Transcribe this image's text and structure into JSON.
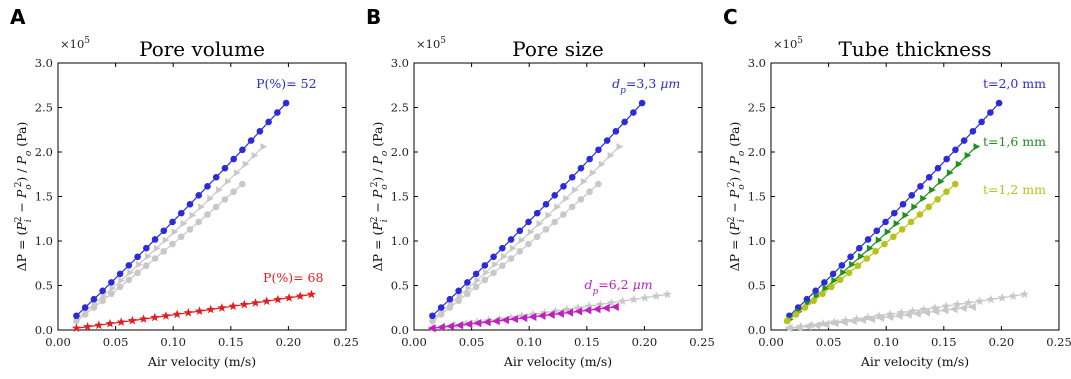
{
  "chart_data": [
    {
      "type": "line",
      "panel_label": "A",
      "title": "Pore volume",
      "xlabel": "Air velocity (m/s)",
      "ylabel": "ΔP = (Pi² − Po²) / Po (Pa)",
      "multiplier": "×10",
      "multiplier_exp": "5",
      "xlim": [
        0,
        0.25
      ],
      "ylim": [
        0,
        3.0
      ],
      "xticks": [
        "0.00",
        "0.05",
        "0.10",
        "0.15",
        "0.20",
        "0.25"
      ],
      "yticks": [
        "0.0",
        "0.5",
        "1.0",
        "1.5",
        "2.0",
        "2.5",
        "3.0"
      ],
      "series": [
        {
          "name": "P(%)= 52",
          "label_pos": [
            0.172,
            2.72
          ],
          "label_color": "#2b2bd9",
          "color": "#2b2bd9",
          "marker": "circle",
          "highlight": true,
          "x_start": 0.016,
          "x_end": 0.198,
          "y_start": 0.16,
          "y_end": 2.55,
          "n": 25
        },
        {
          "name": "P(%)= 68",
          "label_pos": [
            0.178,
            0.54
          ],
          "label_color": "#e02020",
          "color": "#e02020",
          "marker": "star",
          "highlight": true,
          "x_start": 0.016,
          "x_end": 0.22,
          "y_start": 0.02,
          "y_end": 0.4,
          "n": 22
        },
        {
          "name": "",
          "color": "#c8c8c8",
          "marker": "tri",
          "highlight": false,
          "x_start": 0.016,
          "x_end": 0.178,
          "y_start": 0.12,
          "y_end": 2.06,
          "n": 22
        },
        {
          "name": "",
          "color": "#c8c8c8",
          "marker": "circle",
          "highlight": false,
          "x_start": 0.016,
          "x_end": 0.16,
          "y_start": 0.1,
          "y_end": 1.64,
          "n": 20
        }
      ]
    },
    {
      "type": "line",
      "panel_label": "B",
      "title": "Pore size",
      "xlabel": "Air velocity (m/s)",
      "ylabel": "ΔP = (Pi² − Po²) / Po (Pa)",
      "multiplier": "×10",
      "multiplier_exp": "5",
      "xlim": [
        0,
        0.25
      ],
      "ylim": [
        0,
        3.0
      ],
      "xticks": [
        "0.00",
        "0.05",
        "0.10",
        "0.15",
        "0.20",
        "0.25"
      ],
      "yticks": [
        "0.0",
        "0.5",
        "1.0",
        "1.5",
        "2.0",
        "2.5",
        "3.0"
      ],
      "series": [
        {
          "name": "dp=3,3 μm",
          "label_pos": [
            0.172,
            2.72
          ],
          "label_color": "#2b2bd9",
          "color": "#2b2bd9",
          "marker": "circle",
          "highlight": true,
          "x_start": 0.016,
          "x_end": 0.198,
          "y_start": 0.16,
          "y_end": 2.55,
          "n": 25
        },
        {
          "name": "dp=6,2 μm",
          "label_pos": [
            0.148,
            0.46
          ],
          "label_color": "#c020c0",
          "color": "#c020c0",
          "marker": "lefttri",
          "highlight": true,
          "x_start": 0.016,
          "x_end": 0.175,
          "y_start": 0.02,
          "y_end": 0.26,
          "n": 21
        },
        {
          "name": "",
          "color": "#c8c8c8",
          "marker": "tri",
          "highlight": false,
          "x_start": 0.016,
          "x_end": 0.178,
          "y_start": 0.12,
          "y_end": 2.06,
          "n": 22
        },
        {
          "name": "",
          "color": "#c8c8c8",
          "marker": "circle",
          "highlight": false,
          "x_start": 0.016,
          "x_end": 0.16,
          "y_start": 0.1,
          "y_end": 1.64,
          "n": 20
        },
        {
          "name": "",
          "color": "#c8c8c8",
          "marker": "star",
          "highlight": false,
          "x_start": 0.016,
          "x_end": 0.22,
          "y_start": 0.02,
          "y_end": 0.4,
          "n": 22
        }
      ]
    },
    {
      "type": "line",
      "panel_label": "C",
      "title": "Tube thickness",
      "xlabel": "Air velocity (m/s)",
      "ylabel": "ΔP = (Pi² − Po²) / Po (Pa)",
      "multiplier": "×10",
      "multiplier_exp": "5",
      "xlim": [
        0,
        0.25
      ],
      "ylim": [
        0,
        3.0
      ],
      "xticks": [
        "0.00",
        "0.05",
        "0.10",
        "0.15",
        "0.20",
        "0.25"
      ],
      "yticks": [
        "0.0",
        "0.5",
        "1.0",
        "1.5",
        "2.0",
        "2.5",
        "3.0"
      ],
      "series": [
        {
          "name": "t=2,0 mm",
          "label_pos": [
            0.184,
            2.72
          ],
          "label_color": "#2b2bd9",
          "color": "#2b2bd9",
          "marker": "circle",
          "highlight": true,
          "x_start": 0.016,
          "x_end": 0.198,
          "y_start": 0.16,
          "y_end": 2.55,
          "n": 25
        },
        {
          "name": "t=1,6 mm",
          "label_pos": [
            0.184,
            2.07
          ],
          "label_color": "#1f8f1f",
          "color": "#1f8f1f",
          "marker": "tri",
          "highlight": true,
          "x_start": 0.016,
          "x_end": 0.178,
          "y_start": 0.12,
          "y_end": 2.06,
          "n": 22
        },
        {
          "name": "t=1,2 mm",
          "label_pos": [
            0.184,
            1.53
          ],
          "label_color": "#b8c21a",
          "color": "#b8c21a",
          "marker": "circle",
          "highlight": true,
          "x_start": 0.014,
          "x_end": 0.16,
          "y_start": 0.1,
          "y_end": 1.64,
          "n": 20
        },
        {
          "name": "",
          "color": "#c8c8c8",
          "marker": "star",
          "highlight": false,
          "x_start": 0.016,
          "x_end": 0.22,
          "y_start": 0.02,
          "y_end": 0.4,
          "n": 22
        },
        {
          "name": "",
          "color": "#c8c8c8",
          "marker": "lefttri",
          "highlight": false,
          "x_start": 0.016,
          "x_end": 0.175,
          "y_start": 0.02,
          "y_end": 0.26,
          "n": 21
        }
      ]
    }
  ]
}
